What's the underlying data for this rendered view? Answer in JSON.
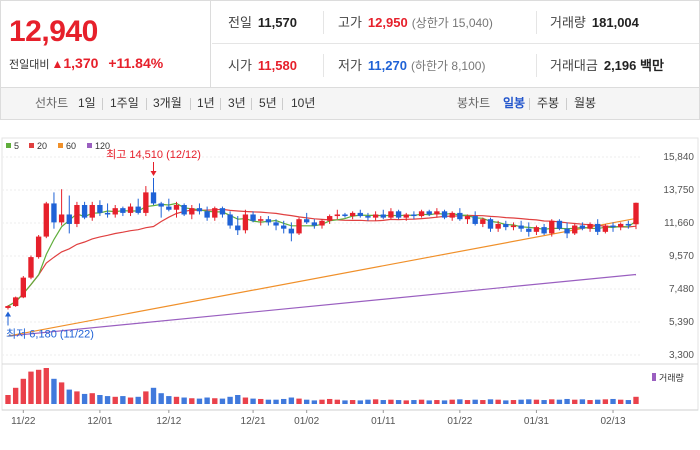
{
  "quote": {
    "price": "12,940",
    "diff_label": "전일대비",
    "diff_arrow": "▲",
    "diff_value": "1,370",
    "diff_rate": "+11.84%"
  },
  "stats": {
    "prev_close": {
      "label": "전일",
      "value": "11,570"
    },
    "high": {
      "label": "고가",
      "value": "12,950",
      "sub": "(상한가 15,040)"
    },
    "volume": {
      "label": "거래량",
      "value": "181,004"
    },
    "open": {
      "label": "시가",
      "value": "11,580"
    },
    "low": {
      "label": "저가",
      "value": "11,270",
      "sub": "(하한가 8,100)"
    },
    "amount": {
      "label": "거래대금",
      "value": "2,196 백만"
    }
  },
  "toolbar": {
    "line_label": "선차트",
    "line_periods": [
      "1일",
      "1주일",
      "3개월",
      "1년",
      "3년",
      "5년",
      "10년"
    ],
    "candle_label": "봉차트",
    "candle_periods": [
      "일봉",
      "주봉",
      "월봉"
    ],
    "candle_selected": "일봉"
  },
  "colors": {
    "up": "#e6202b",
    "down": "#1f62d6",
    "ma5": "#5fae3b",
    "ma20": "#e04040",
    "ma60": "#f0902a",
    "ma120": "#9a5fc0"
  },
  "chart_data": {
    "type": "candlestick",
    "legend": [
      {
        "name": "5",
        "color": "#5fae3b"
      },
      {
        "name": "20",
        "color": "#e04040"
      },
      {
        "name": "60",
        "color": "#f0902a"
      },
      {
        "name": "120",
        "color": "#9a5fc0"
      }
    ],
    "y_ticks": [
      "15,840",
      "13,750",
      "11,660",
      "9,570",
      "7,480",
      "5,390",
      "3,300"
    ],
    "ylim": [
      3300,
      15840
    ],
    "x_ticks": [
      {
        "label": "11/22",
        "i": 2
      },
      {
        "label": "12/01",
        "i": 12
      },
      {
        "label": "12/12",
        "i": 21
      },
      {
        "label": "12/21",
        "i": 32
      },
      {
        "label": "01/02",
        "i": 39
      },
      {
        "label": "01/11",
        "i": 49
      },
      {
        "label": "01/22",
        "i": 59
      },
      {
        "label": "01/31",
        "i": 69
      },
      {
        "label": "02/13",
        "i": 79
      }
    ],
    "max_annotation": "최고 14,510 (12/12)",
    "min_annotation": "최저 6,180 (11/22)",
    "volume_legend": "거래량",
    "candles": [
      [
        6280,
        6450,
        6180,
        6400
      ],
      [
        6400,
        7000,
        6350,
        6950
      ],
      [
        6950,
        8300,
        6900,
        8200
      ],
      [
        8200,
        9600,
        8100,
        9500
      ],
      [
        9500,
        10900,
        9400,
        10800
      ],
      [
        10800,
        13000,
        10700,
        12900
      ],
      [
        12900,
        13600,
        11300,
        11700
      ],
      [
        11700,
        13800,
        11500,
        12200
      ],
      [
        12200,
        13400,
        11000,
        11600
      ],
      [
        11600,
        13000,
        11400,
        12800
      ],
      [
        12800,
        13000,
        11900,
        12000
      ],
      [
        12000,
        13000,
        11800,
        12800
      ],
      [
        12800,
        13100,
        12100,
        12300
      ],
      [
        12300,
        12900,
        12000,
        12200
      ],
      [
        12200,
        12800,
        12000,
        12600
      ],
      [
        12600,
        12700,
        12100,
        12300
      ],
      [
        12300,
        12900,
        12100,
        12700
      ],
      [
        12700,
        13200,
        12200,
        12300
      ],
      [
        12300,
        14000,
        12100,
        13600
      ],
      [
        13600,
        14510,
        12800,
        12900
      ],
      [
        12900,
        13000,
        12000,
        12700
      ],
      [
        12700,
        13200,
        12400,
        12500
      ],
      [
        12500,
        13000,
        12000,
        12800
      ],
      [
        12800,
        12900,
        12100,
        12200
      ],
      [
        12200,
        12800,
        11900,
        12600
      ],
      [
        12600,
        12900,
        12200,
        12400
      ],
      [
        12400,
        12700,
        11800,
        12000
      ],
      [
        12000,
        12700,
        11800,
        12600
      ],
      [
        12600,
        12700,
        12000,
        12200
      ],
      [
        12200,
        12400,
        11300,
        11500
      ],
      [
        11500,
        12100,
        10900,
        11200
      ],
      [
        11200,
        12500,
        11000,
        12200
      ],
      [
        12200,
        12400,
        11700,
        11800
      ],
      [
        11800,
        12100,
        11500,
        11900
      ],
      [
        11900,
        12100,
        11500,
        11700
      ],
      [
        11700,
        11900,
        11200,
        11500
      ],
      [
        11500,
        11800,
        11000,
        11300
      ],
      [
        11300,
        11700,
        10500,
        11000
      ],
      [
        11000,
        12000,
        10900,
        11900
      ],
      [
        11900,
        12300,
        11600,
        11700
      ],
      [
        11700,
        11900,
        11300,
        11500
      ],
      [
        11500,
        11900,
        11300,
        11800
      ],
      [
        11800,
        12200,
        11600,
        12100
      ],
      [
        12100,
        12500,
        11900,
        12200
      ],
      [
        12200,
        12300,
        12000,
        12100
      ],
      [
        12100,
        12400,
        11900,
        12300
      ],
      [
        12300,
        12500,
        12000,
        12100
      ],
      [
        12100,
        12300,
        11800,
        12000
      ],
      [
        12000,
        12400,
        11800,
        12200
      ],
      [
        12200,
        12500,
        11900,
        12000
      ],
      [
        12000,
        12600,
        11900,
        12400
      ],
      [
        12400,
        12500,
        11900,
        12000
      ],
      [
        12000,
        12300,
        11800,
        12200
      ],
      [
        12200,
        12400,
        11900,
        12100
      ],
      [
        12100,
        12500,
        12000,
        12400
      ],
      [
        12400,
        12500,
        12100,
        12200
      ],
      [
        12200,
        12600,
        12000,
        12400
      ],
      [
        12400,
        12500,
        11900,
        12000
      ],
      [
        12000,
        12400,
        11800,
        12300
      ],
      [
        12300,
        12600,
        11800,
        11900
      ],
      [
        11900,
        12200,
        11600,
        12100
      ],
      [
        12100,
        12400,
        11500,
        11600
      ],
      [
        11600,
        12000,
        11400,
        11900
      ],
      [
        11900,
        12000,
        11100,
        11300
      ],
      [
        11300,
        11800,
        11100,
        11600
      ],
      [
        11600,
        11800,
        11200,
        11400
      ],
      [
        11400,
        11700,
        11200,
        11500
      ],
      [
        11500,
        11800,
        11100,
        11300
      ],
      [
        11300,
        11700,
        10800,
        11100
      ],
      [
        11100,
        11500,
        10900,
        11400
      ],
      [
        11400,
        11600,
        10900,
        11000
      ],
      [
        11000,
        11900,
        10800,
        11800
      ],
      [
        11800,
        11900,
        11200,
        11300
      ],
      [
        11300,
        11700,
        10700,
        11000
      ],
      [
        11000,
        11600,
        10900,
        11500
      ],
      [
        11500,
        11700,
        11200,
        11300
      ],
      [
        11300,
        11700,
        11100,
        11600
      ],
      [
        11600,
        11900,
        10900,
        11100
      ],
      [
        11100,
        11600,
        11000,
        11500
      ],
      [
        11500,
        11700,
        11100,
        11400
      ],
      [
        11400,
        11700,
        11200,
        11600
      ],
      [
        11600,
        11800,
        11300,
        11500
      ],
      [
        11580,
        12950,
        11270,
        12940
      ]
    ],
    "volume": [
      25,
      45,
      70,
      90,
      95,
      100,
      70,
      60,
      40,
      35,
      28,
      30,
      25,
      22,
      20,
      22,
      18,
      20,
      35,
      45,
      30,
      22,
      20,
      18,
      16,
      15,
      18,
      16,
      15,
      20,
      25,
      18,
      15,
      14,
      12,
      12,
      14,
      18,
      15,
      12,
      10,
      12,
      14,
      12,
      10,
      11,
      10,
      12,
      13,
      11,
      12,
      11,
      10,
      11,
      12,
      10,
      11,
      10,
      12,
      13,
      11,
      12,
      11,
      13,
      12,
      10,
      11,
      12,
      13,
      12,
      11,
      13,
      12,
      14,
      12,
      13,
      11,
      12,
      13,
      14,
      12,
      11,
      20
    ],
    "ma60_range": [
      4500,
      11950
    ],
    "ma120_range": [
      4500,
      8400
    ]
  }
}
